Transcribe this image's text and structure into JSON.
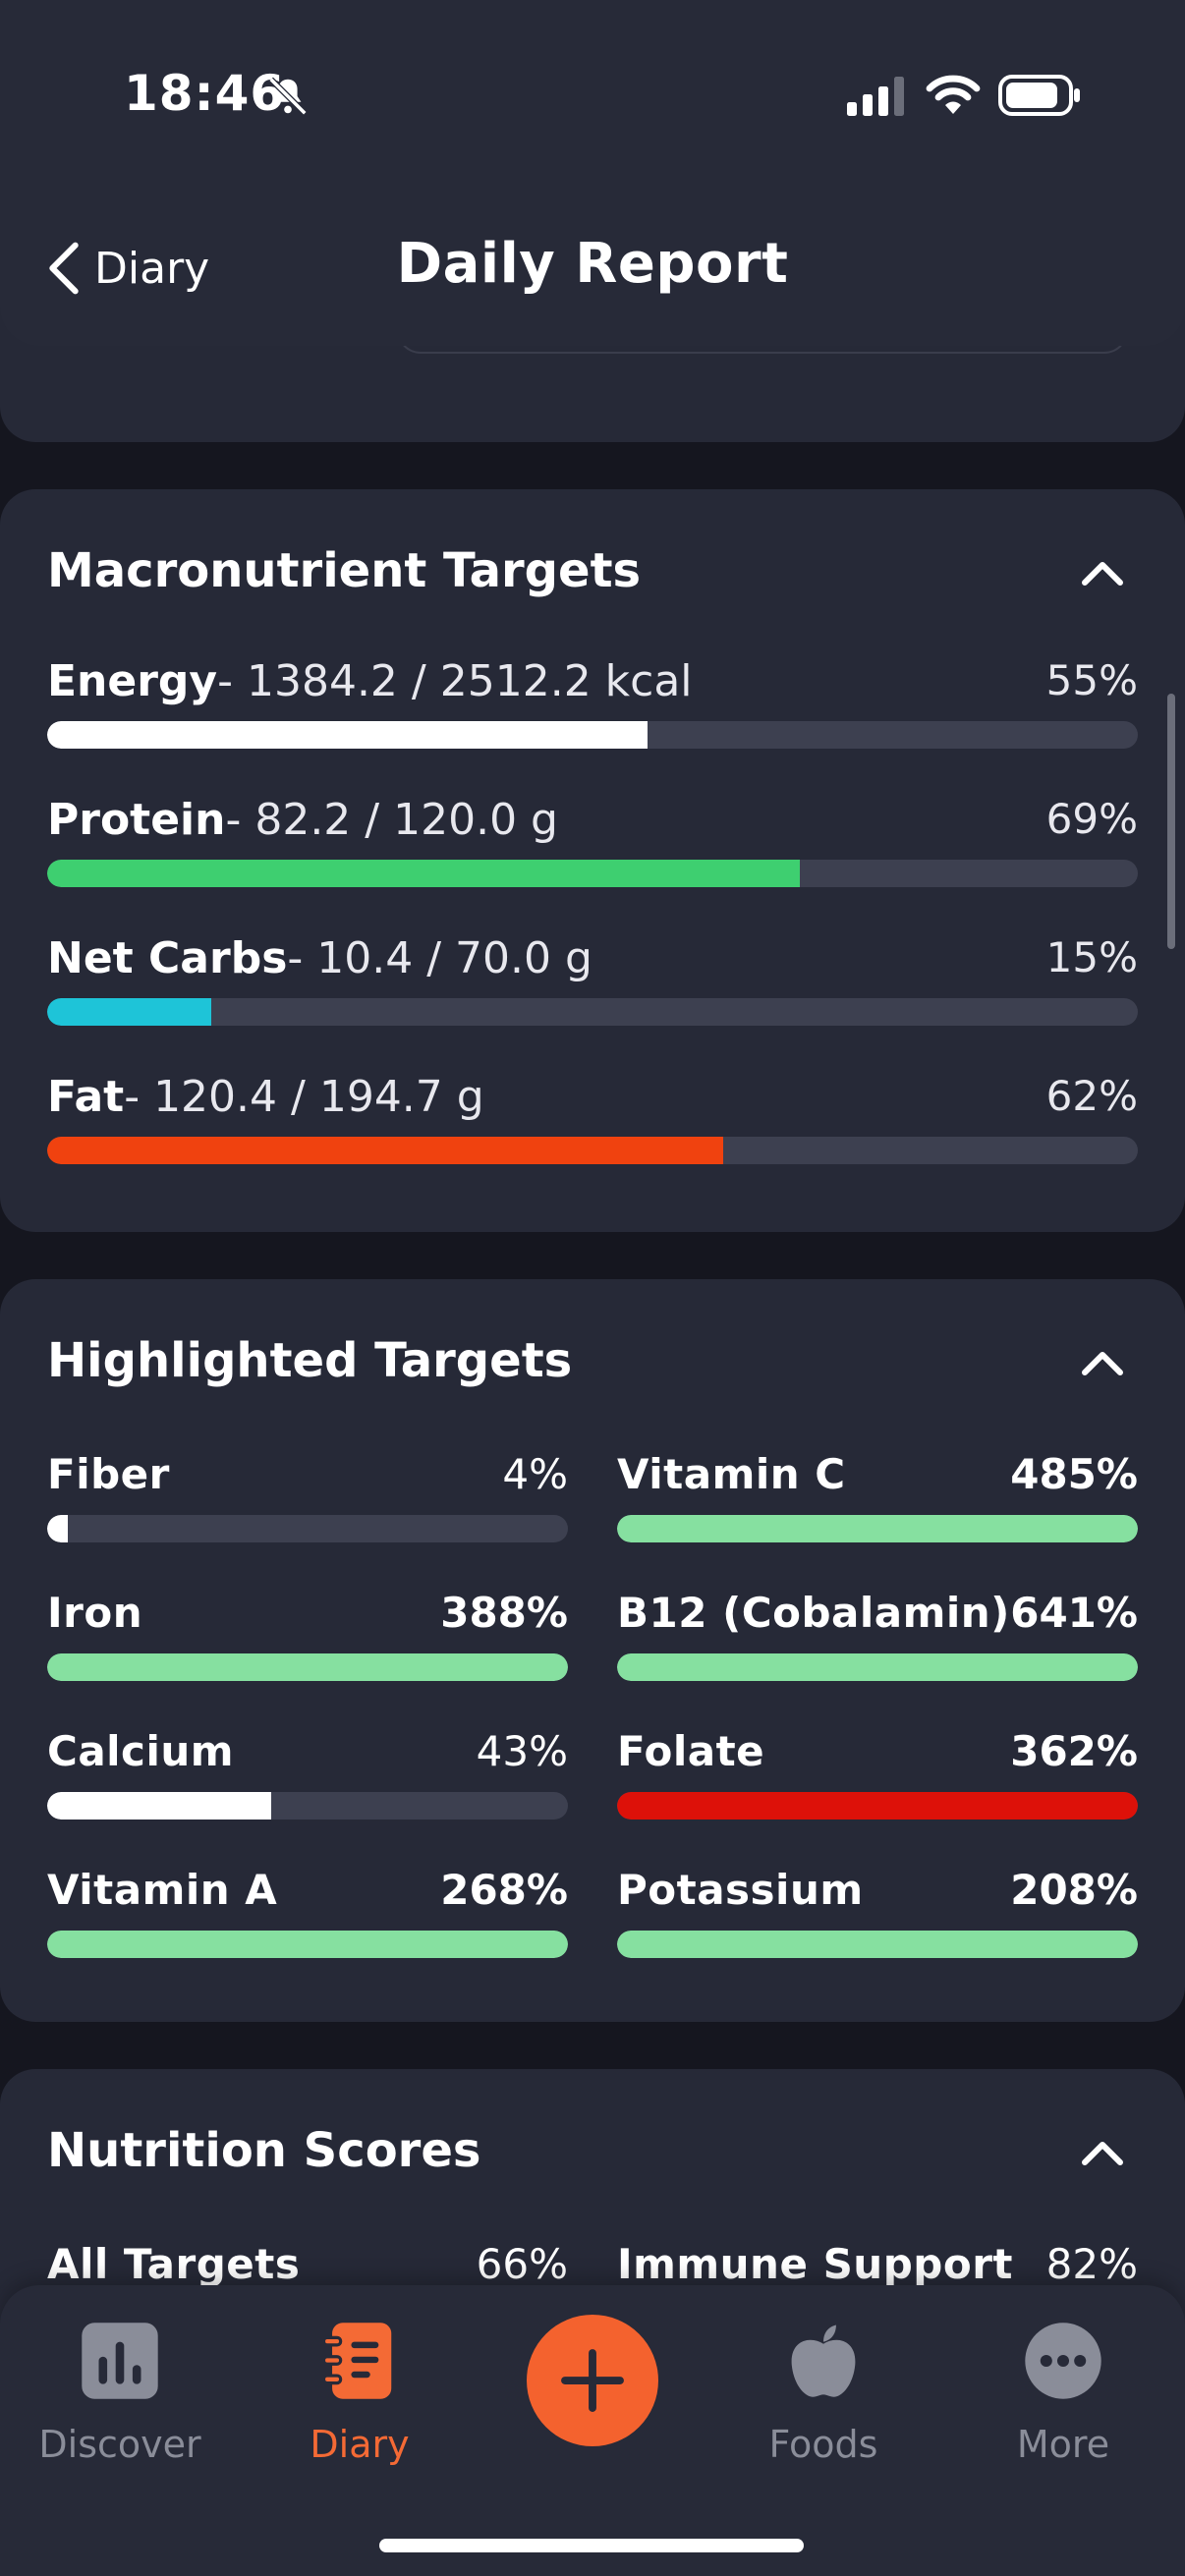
{
  "status": {
    "time": "18:46"
  },
  "nav": {
    "back_label": "Diary",
    "title": "Daily Report"
  },
  "macros": {
    "title": "Macronutrient Targets",
    "items": [
      {
        "name": "Energy",
        "detail": "- 1384.2 / 2512.2 kcal",
        "pct": "55%",
        "fill": 0.55,
        "color": "#ffffff"
      },
      {
        "name": "Protein",
        "detail": "- 82.2 / 120.0 g",
        "pct": "69%",
        "fill": 0.69,
        "color": "#3ecf70"
      },
      {
        "name": "Net Carbs",
        "detail": "- 10.4 / 70.0 g",
        "pct": "15%",
        "fill": 0.15,
        "color": "#1ec4d8"
      },
      {
        "name": "Fat",
        "detail": "- 120.4 / 194.7 g",
        "pct": "62%",
        "fill": 0.62,
        "color": "#f0420f"
      }
    ]
  },
  "highlighted": {
    "title": "Highlighted Targets",
    "items": [
      {
        "name": "Fiber",
        "pct": "4%",
        "fill": 0.04,
        "color": "#ffffff"
      },
      {
        "name": "Vitamin C",
        "pct": "485%",
        "fill": 1.0,
        "color": "#86e0a0"
      },
      {
        "name": "Iron",
        "pct": "388%",
        "fill": 1.0,
        "color": "#86e0a0"
      },
      {
        "name": "B12 (Cobalamin)",
        "pct": "641%",
        "fill": 1.0,
        "color": "#86e0a0"
      },
      {
        "name": "Calcium",
        "pct": "43%",
        "fill": 0.43,
        "color": "#ffffff"
      },
      {
        "name": "Folate",
        "pct": "362%",
        "fill": 1.0,
        "color": "#dd1109"
      },
      {
        "name": "Vitamin A",
        "pct": "268%",
        "fill": 1.0,
        "color": "#86e0a0"
      },
      {
        "name": "Potassium",
        "pct": "208%",
        "fill": 1.0,
        "color": "#86e0a0"
      }
    ]
  },
  "scores": {
    "title": "Nutrition Scores",
    "items": [
      {
        "name": "All Targets",
        "pct": "66%"
      },
      {
        "name": "Immune Support",
        "pct": "82%"
      }
    ]
  },
  "tabs": {
    "discover": "Discover",
    "diary": "Diary",
    "foods": "Foods",
    "more": "More",
    "active": "Diary",
    "accent": "#f4622e"
  }
}
